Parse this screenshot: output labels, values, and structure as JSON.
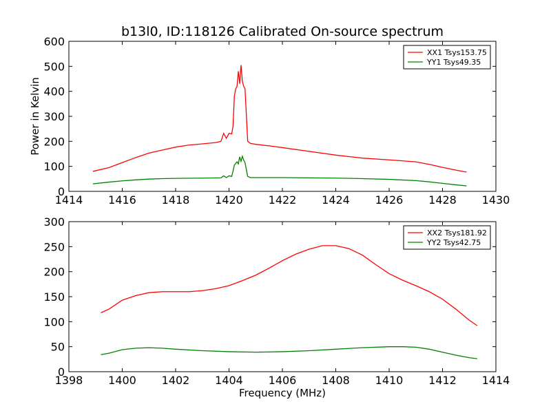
{
  "chart_data": [
    {
      "type": "line",
      "title": "b13l0, ID:118126 Calibrated On-source spectrum",
      "xlabel": "",
      "ylabel": "Power in Kelvin",
      "xlim": [
        1414,
        1430
      ],
      "ylim": [
        0,
        600
      ],
      "xticks": [
        1414,
        1416,
        1418,
        1420,
        1422,
        1424,
        1426,
        1428,
        1430
      ],
      "yticks": [
        0,
        100,
        200,
        300,
        400,
        500,
        600
      ],
      "legend_position": "top-right",
      "grid": false,
      "series": [
        {
          "name": "XX1 Tsys153.75",
          "color": "#ff0000",
          "points": [
            [
              1414.9,
              80
            ],
            [
              1415.5,
              95
            ],
            [
              1416,
              115
            ],
            [
              1416.5,
              135
            ],
            [
              1417,
              153
            ],
            [
              1417.5,
              165
            ],
            [
              1418,
              177
            ],
            [
              1418.5,
              185
            ],
            [
              1419,
              190
            ],
            [
              1419.5,
              195
            ],
            [
              1419.7,
              200
            ],
            [
              1419.8,
              232
            ],
            [
              1419.9,
              212
            ],
            [
              1420.0,
              232
            ],
            [
              1420.1,
              230
            ],
            [
              1420.15,
              260
            ],
            [
              1420.2,
              380
            ],
            [
              1420.25,
              410
            ],
            [
              1420.3,
              420
            ],
            [
              1420.35,
              480
            ],
            [
              1420.4,
              430
            ],
            [
              1420.45,
              505
            ],
            [
              1420.5,
              440
            ],
            [
              1420.55,
              420
            ],
            [
              1420.6,
              410
            ],
            [
              1420.7,
              200
            ],
            [
              1420.8,
              192
            ],
            [
              1421,
              188
            ],
            [
              1421.5,
              182
            ],
            [
              1422,
              175
            ],
            [
              1423,
              160
            ],
            [
              1424,
              145
            ],
            [
              1425,
              133
            ],
            [
              1426,
              126
            ],
            [
              1427,
              118
            ],
            [
              1427.5,
              108
            ],
            [
              1428,
              96
            ],
            [
              1428.5,
              85
            ],
            [
              1428.9,
              77
            ]
          ]
        },
        {
          "name": "YY1 Tsys49.35",
          "color": "#008000",
          "points": [
            [
              1414.9,
              30
            ],
            [
              1415.5,
              37
            ],
            [
              1416,
              42
            ],
            [
              1416.5,
              46
            ],
            [
              1417,
              49
            ],
            [
              1417.5,
              51
            ],
            [
              1418,
              52
            ],
            [
              1419,
              53
            ],
            [
              1419.7,
              54
            ],
            [
              1419.8,
              62
            ],
            [
              1419.9,
              55
            ],
            [
              1420.0,
              62
            ],
            [
              1420.1,
              60
            ],
            [
              1420.15,
              80
            ],
            [
              1420.2,
              105
            ],
            [
              1420.3,
              118
            ],
            [
              1420.35,
              110
            ],
            [
              1420.4,
              138
            ],
            [
              1420.45,
              120
            ],
            [
              1420.5,
              140
            ],
            [
              1420.55,
              125
            ],
            [
              1420.6,
              115
            ],
            [
              1420.7,
              60
            ],
            [
              1420.8,
              55
            ],
            [
              1421.5,
              55
            ],
            [
              1422,
              55
            ],
            [
              1423,
              54
            ],
            [
              1424,
              53
            ],
            [
              1425,
              51
            ],
            [
              1426,
              48
            ],
            [
              1427,
              43
            ],
            [
              1427.5,
              38
            ],
            [
              1428,
              32
            ],
            [
              1428.5,
              26
            ],
            [
              1428.9,
              22
            ]
          ]
        }
      ]
    },
    {
      "type": "line",
      "title": "",
      "xlabel": "Frequency (MHz)",
      "ylabel": "",
      "xlim": [
        1398,
        1414
      ],
      "ylim": [
        0,
        300
      ],
      "xticks": [
        1398,
        1400,
        1402,
        1404,
        1406,
        1408,
        1410,
        1412,
        1414
      ],
      "yticks": [
        0,
        50,
        100,
        150,
        200,
        250,
        300
      ],
      "legend_position": "top-right",
      "grid": false,
      "series": [
        {
          "name": "XX2 Tsys181.92",
          "color": "#ff0000",
          "points": [
            [
              1399.2,
              118
            ],
            [
              1399.5,
              125
            ],
            [
              1400,
              143
            ],
            [
              1400.5,
              152
            ],
            [
              1401,
              158
            ],
            [
              1401.5,
              160
            ],
            [
              1402,
              160
            ],
            [
              1402.5,
              160
            ],
            [
              1403,
              162
            ],
            [
              1403.5,
              166
            ],
            [
              1404,
              172
            ],
            [
              1404.5,
              182
            ],
            [
              1405,
              193
            ],
            [
              1405.5,
              207
            ],
            [
              1406,
              222
            ],
            [
              1406.5,
              235
            ],
            [
              1407,
              245
            ],
            [
              1407.5,
              252
            ],
            [
              1408,
              252
            ],
            [
              1408.5,
              246
            ],
            [
              1409,
              233
            ],
            [
              1409.5,
              214
            ],
            [
              1410,
              196
            ],
            [
              1410.5,
              183
            ],
            [
              1411,
              172
            ],
            [
              1411.5,
              160
            ],
            [
              1412,
              145
            ],
            [
              1412.5,
              125
            ],
            [
              1413,
              103
            ],
            [
              1413.3,
              92
            ]
          ]
        },
        {
          "name": "YY2 Tsys42.75",
          "color": "#008000",
          "points": [
            [
              1399.2,
              34
            ],
            [
              1399.5,
              37
            ],
            [
              1400,
              44
            ],
            [
              1400.5,
              47
            ],
            [
              1401,
              48
            ],
            [
              1401.5,
              47
            ],
            [
              1402,
              45
            ],
            [
              1403,
              42
            ],
            [
              1404,
              40
            ],
            [
              1405,
              39
            ],
            [
              1406,
              40
            ],
            [
              1407,
              42
            ],
            [
              1408,
              45
            ],
            [
              1409,
              48
            ],
            [
              1410,
              50
            ],
            [
              1410.5,
              50
            ],
            [
              1411,
              49
            ],
            [
              1411.5,
              45
            ],
            [
              1412,
              39
            ],
            [
              1412.5,
              33
            ],
            [
              1413,
              28
            ],
            [
              1413.3,
              26
            ]
          ]
        }
      ]
    }
  ]
}
